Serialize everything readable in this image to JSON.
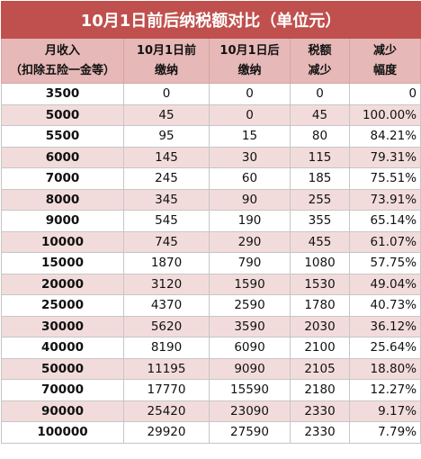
{
  "title": "10月1日前后纳税额对比（单位元）",
  "headers": {
    "income_line1": "月收入",
    "income_line2": "（扣除五险一金等）",
    "before_line1": "10月1日前",
    "before_line2": "缴纳",
    "after_line1": "10月1日后",
    "after_line2": "缴纳",
    "reduction_line1": "税额",
    "reduction_line2": "减少",
    "rate_line1": "减少",
    "rate_line2": "幅度"
  },
  "rows": [
    {
      "income": "3500",
      "before": "0",
      "after": "0",
      "reduction": "0",
      "rate": "0"
    },
    {
      "income": "5000",
      "before": "45",
      "after": "0",
      "reduction": "45",
      "rate": "100.00%"
    },
    {
      "income": "5500",
      "before": "95",
      "after": "15",
      "reduction": "80",
      "rate": "84.21%"
    },
    {
      "income": "6000",
      "before": "145",
      "after": "30",
      "reduction": "115",
      "rate": "79.31%"
    },
    {
      "income": "7000",
      "before": "245",
      "after": "60",
      "reduction": "185",
      "rate": "75.51%"
    },
    {
      "income": "8000",
      "before": "345",
      "after": "90",
      "reduction": "255",
      "rate": "73.91%"
    },
    {
      "income": "9000",
      "before": "545",
      "after": "190",
      "reduction": "355",
      "rate": "65.14%"
    },
    {
      "income": "10000",
      "before": "745",
      "after": "290",
      "reduction": "455",
      "rate": "61.07%"
    },
    {
      "income": "15000",
      "before": "1870",
      "after": "790",
      "reduction": "1080",
      "rate": "57.75%"
    },
    {
      "income": "20000",
      "before": "3120",
      "after": "1590",
      "reduction": "1530",
      "rate": "49.04%"
    },
    {
      "income": "25000",
      "before": "4370",
      "after": "2590",
      "reduction": "1780",
      "rate": "40.73%"
    },
    {
      "income": "30000",
      "before": "5620",
      "after": "3590",
      "reduction": "2030",
      "rate": "36.12%"
    },
    {
      "income": "40000",
      "before": "8190",
      "after": "6090",
      "reduction": "2100",
      "rate": "25.64%"
    },
    {
      "income": "50000",
      "before": "11195",
      "after": "9090",
      "reduction": "2105",
      "rate": "18.80%"
    },
    {
      "income": "70000",
      "before": "17770",
      "after": "15590",
      "reduction": "2180",
      "rate": "12.27%"
    },
    {
      "income": "90000",
      "before": "25420",
      "after": "23090",
      "reduction": "2330",
      "rate": "9.17%"
    },
    {
      "income": "100000",
      "before": "29920",
      "after": "27590",
      "reduction": "2330",
      "rate": "7.79%"
    }
  ],
  "colors": {
    "title_bg": "#c0504d",
    "title_text": "#ffffff",
    "header_bg": "#e6b8b7",
    "band_bg": "#f2dcdb",
    "row_bg": "#ffffff"
  }
}
